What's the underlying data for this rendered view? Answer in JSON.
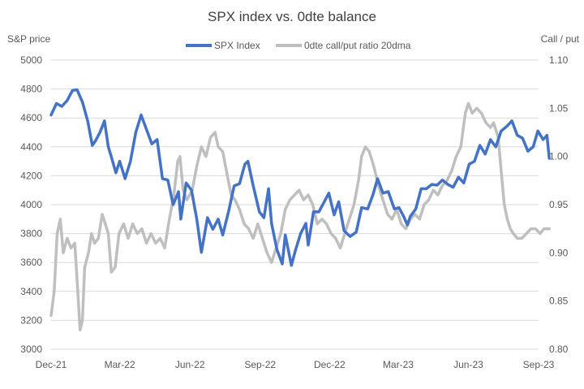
{
  "chart_data": {
    "type": "line",
    "title": "SPX index vs. 0dte balance",
    "y_left_label": "S&P price",
    "y_right_label": "Call / put",
    "y_left_lim": [
      3000,
      5000
    ],
    "y_left_ticks": [
      "3000",
      "3200",
      "3400",
      "3600",
      "3800",
      "4000",
      "4200",
      "4400",
      "4600",
      "4800",
      "5000"
    ],
    "y_right_lim": [
      0.8,
      1.1
    ],
    "y_right_ticks": [
      "0.80",
      "0.85",
      "0.90",
      "0.95",
      "1.00",
      "1.05",
      "1.10"
    ],
    "x_ticks": [
      "Dec-21",
      "Mar-22",
      "Jun-22",
      "Sep-22",
      "Dec-22",
      "Mar-23",
      "Jun-23",
      "Sep-23"
    ],
    "x_tick_dates": [
      "2021-12-01",
      "2022-03-01",
      "2022-06-01",
      "2022-09-01",
      "2022-12-01",
      "2023-03-01",
      "2023-06-01",
      "2023-09-01"
    ],
    "gridlines": "horizontal",
    "legend_position": "top",
    "series": [
      {
        "name": "SPX Index",
        "axis": "left",
        "color": "#4472c4",
        "points": [
          [
            "2021-12-01",
            4620
          ],
          [
            "2021-12-08",
            4700
          ],
          [
            "2021-12-15",
            4680
          ],
          [
            "2021-12-22",
            4720
          ],
          [
            "2021-12-29",
            4790
          ],
          [
            "2022-01-04",
            4795
          ],
          [
            "2022-01-11",
            4710
          ],
          [
            "2022-01-18",
            4580
          ],
          [
            "2022-01-24",
            4410
          ],
          [
            "2022-01-28",
            4440
          ],
          [
            "2022-02-03",
            4500
          ],
          [
            "2022-02-09",
            4580
          ],
          [
            "2022-02-14",
            4400
          ],
          [
            "2022-02-18",
            4330
          ],
          [
            "2022-02-24",
            4220
          ],
          [
            "2022-03-01",
            4300
          ],
          [
            "2022-03-08",
            4180
          ],
          [
            "2022-03-15",
            4300
          ],
          [
            "2022-03-22",
            4500
          ],
          [
            "2022-03-29",
            4620
          ],
          [
            "2022-04-05",
            4520
          ],
          [
            "2022-04-12",
            4420
          ],
          [
            "2022-04-19",
            4450
          ],
          [
            "2022-04-26",
            4180
          ],
          [
            "2022-05-03",
            4170
          ],
          [
            "2022-05-10",
            4000
          ],
          [
            "2022-05-17",
            4090
          ],
          [
            "2022-05-20",
            3900
          ],
          [
            "2022-05-27",
            4150
          ],
          [
            "2022-06-03",
            4100
          ],
          [
            "2022-06-10",
            3900
          ],
          [
            "2022-06-16",
            3670
          ],
          [
            "2022-06-24",
            3910
          ],
          [
            "2022-07-01",
            3830
          ],
          [
            "2022-07-08",
            3900
          ],
          [
            "2022-07-14",
            3790
          ],
          [
            "2022-07-22",
            3960
          ],
          [
            "2022-07-29",
            4130
          ],
          [
            "2022-08-05",
            4145
          ],
          [
            "2022-08-12",
            4280
          ],
          [
            "2022-08-16",
            4300
          ],
          [
            "2022-08-23",
            4130
          ],
          [
            "2022-08-31",
            3950
          ],
          [
            "2022-09-06",
            3910
          ],
          [
            "2022-09-12",
            4110
          ],
          [
            "2022-09-16",
            3870
          ],
          [
            "2022-09-23",
            3690
          ],
          [
            "2022-09-30",
            3590
          ],
          [
            "2022-10-04",
            3790
          ],
          [
            "2022-10-12",
            3580
          ],
          [
            "2022-10-17",
            3680
          ],
          [
            "2022-10-24",
            3800
          ],
          [
            "2022-10-31",
            3870
          ],
          [
            "2022-11-03",
            3720
          ],
          [
            "2022-11-10",
            3950
          ],
          [
            "2022-11-17",
            3950
          ],
          [
            "2022-11-25",
            4030
          ],
          [
            "2022-11-30",
            4080
          ],
          [
            "2022-12-07",
            3930
          ],
          [
            "2022-12-13",
            4020
          ],
          [
            "2022-12-20",
            3820
          ],
          [
            "2022-12-28",
            3780
          ],
          [
            "2023-01-05",
            3810
          ],
          [
            "2023-01-12",
            3980
          ],
          [
            "2023-01-20",
            3970
          ],
          [
            "2023-01-27",
            4070
          ],
          [
            "2023-02-02",
            4180
          ],
          [
            "2023-02-09",
            4080
          ],
          [
            "2023-02-16",
            4090
          ],
          [
            "2023-02-24",
            3970
          ],
          [
            "2023-03-02",
            3980
          ],
          [
            "2023-03-08",
            3920
          ],
          [
            "2023-03-13",
            3860
          ],
          [
            "2023-03-17",
            3920
          ],
          [
            "2023-03-24",
            3970
          ],
          [
            "2023-03-31",
            4110
          ],
          [
            "2023-04-07",
            4110
          ],
          [
            "2023-04-14",
            4140
          ],
          [
            "2023-04-21",
            4135
          ],
          [
            "2023-04-28",
            4170
          ],
          [
            "2023-05-05",
            4140
          ],
          [
            "2023-05-12",
            4120
          ],
          [
            "2023-05-19",
            4190
          ],
          [
            "2023-05-26",
            4150
          ],
          [
            "2023-06-02",
            4280
          ],
          [
            "2023-06-09",
            4300
          ],
          [
            "2023-06-16",
            4410
          ],
          [
            "2023-06-23",
            4350
          ],
          [
            "2023-06-30",
            4450
          ],
          [
            "2023-07-07",
            4400
          ],
          [
            "2023-07-14",
            4510
          ],
          [
            "2023-07-21",
            4540
          ],
          [
            "2023-07-28",
            4580
          ],
          [
            "2023-08-04",
            4480
          ],
          [
            "2023-08-11",
            4460
          ],
          [
            "2023-08-18",
            4370
          ],
          [
            "2023-08-25",
            4400
          ],
          [
            "2023-08-31",
            4510
          ],
          [
            "2023-09-07",
            4450
          ],
          [
            "2023-09-12",
            4480
          ],
          [
            "2023-09-15",
            4320
          ]
        ]
      },
      {
        "name": "0dte call/put ratio 20dma",
        "axis": "right",
        "color": "#bfbfbf",
        "points": [
          [
            "2021-12-01",
            0.835
          ],
          [
            "2021-12-05",
            0.86
          ],
          [
            "2021-12-09",
            0.92
          ],
          [
            "2021-12-13",
            0.935
          ],
          [
            "2021-12-17",
            0.9
          ],
          [
            "2021-12-22",
            0.915
          ],
          [
            "2021-12-27",
            0.905
          ],
          [
            "2022-01-01",
            0.91
          ],
          [
            "2022-01-05",
            0.86
          ],
          [
            "2022-01-08",
            0.82
          ],
          [
            "2022-01-11",
            0.83
          ],
          [
            "2022-01-14",
            0.885
          ],
          [
            "2022-01-19",
            0.9
          ],
          [
            "2022-01-23",
            0.92
          ],
          [
            "2022-01-27",
            0.91
          ],
          [
            "2022-02-01",
            0.915
          ],
          [
            "2022-02-06",
            0.94
          ],
          [
            "2022-02-10",
            0.93
          ],
          [
            "2022-02-14",
            0.92
          ],
          [
            "2022-02-18",
            0.88
          ],
          [
            "2022-02-23",
            0.885
          ],
          [
            "2022-02-28",
            0.92
          ],
          [
            "2022-03-06",
            0.93
          ],
          [
            "2022-03-12",
            0.915
          ],
          [
            "2022-03-18",
            0.93
          ],
          [
            "2022-03-24",
            0.92
          ],
          [
            "2022-03-30",
            0.925
          ],
          [
            "2022-04-05",
            0.91
          ],
          [
            "2022-04-11",
            0.92
          ],
          [
            "2022-04-17",
            0.91
          ],
          [
            "2022-04-23",
            0.915
          ],
          [
            "2022-04-29",
            0.905
          ],
          [
            "2022-05-05",
            0.935
          ],
          [
            "2022-05-11",
            0.96
          ],
          [
            "2022-05-16",
            0.995
          ],
          [
            "2022-05-19",
            1.0
          ],
          [
            "2022-05-23",
            0.965
          ],
          [
            "2022-05-28",
            0.955
          ],
          [
            "2022-06-04",
            0.965
          ],
          [
            "2022-06-10",
            0.99
          ],
          [
            "2022-06-16",
            1.01
          ],
          [
            "2022-06-22",
            1.0
          ],
          [
            "2022-06-28",
            1.02
          ],
          [
            "2022-07-04",
            1.025
          ],
          [
            "2022-07-08",
            1.01
          ],
          [
            "2022-07-14",
            1.005
          ],
          [
            "2022-07-20",
            0.98
          ],
          [
            "2022-07-25",
            0.96
          ],
          [
            "2022-07-30",
            0.955
          ],
          [
            "2022-08-05",
            0.945
          ],
          [
            "2022-08-11",
            0.93
          ],
          [
            "2022-08-17",
            0.925
          ],
          [
            "2022-08-23",
            0.915
          ],
          [
            "2022-08-29",
            0.93
          ],
          [
            "2022-09-04",
            0.915
          ],
          [
            "2022-09-10",
            0.9
          ],
          [
            "2022-09-16",
            0.89
          ],
          [
            "2022-09-22",
            0.905
          ],
          [
            "2022-09-28",
            0.92
          ],
          [
            "2022-10-04",
            0.945
          ],
          [
            "2022-10-10",
            0.955
          ],
          [
            "2022-10-16",
            0.96
          ],
          [
            "2022-10-22",
            0.965
          ],
          [
            "2022-10-28",
            0.955
          ],
          [
            "2022-11-03",
            0.96
          ],
          [
            "2022-11-09",
            0.95
          ],
          [
            "2022-11-15",
            0.93
          ],
          [
            "2022-11-21",
            0.935
          ],
          [
            "2022-11-27",
            0.93
          ],
          [
            "2022-12-03",
            0.92
          ],
          [
            "2022-12-09",
            0.915
          ],
          [
            "2022-12-15",
            0.905
          ],
          [
            "2022-12-21",
            0.92
          ],
          [
            "2022-12-27",
            0.935
          ],
          [
            "2023-01-02",
            0.95
          ],
          [
            "2023-01-08",
            0.975
          ],
          [
            "2023-01-12",
            1.0
          ],
          [
            "2023-01-17",
            1.01
          ],
          [
            "2023-01-22",
            1.005
          ],
          [
            "2023-01-28",
            0.99
          ],
          [
            "2023-02-03",
            0.97
          ],
          [
            "2023-02-09",
            0.955
          ],
          [
            "2023-02-15",
            0.94
          ],
          [
            "2023-02-21",
            0.935
          ],
          [
            "2023-02-27",
            0.945
          ],
          [
            "2023-03-05",
            0.93
          ],
          [
            "2023-03-11",
            0.925
          ],
          [
            "2023-03-17",
            0.935
          ],
          [
            "2023-03-23",
            0.94
          ],
          [
            "2023-03-29",
            0.935
          ],
          [
            "2023-04-04",
            0.95
          ],
          [
            "2023-04-10",
            0.955
          ],
          [
            "2023-04-16",
            0.965
          ],
          [
            "2023-04-22",
            0.96
          ],
          [
            "2023-04-28",
            0.97
          ],
          [
            "2023-05-04",
            0.975
          ],
          [
            "2023-05-10",
            0.985
          ],
          [
            "2023-05-16",
            1.0
          ],
          [
            "2023-05-22",
            1.01
          ],
          [
            "2023-05-28",
            1.045
          ],
          [
            "2023-06-01",
            1.055
          ],
          [
            "2023-06-06",
            1.045
          ],
          [
            "2023-06-12",
            1.05
          ],
          [
            "2023-06-18",
            1.045
          ],
          [
            "2023-06-24",
            1.035
          ],
          [
            "2023-06-30",
            1.03
          ],
          [
            "2023-07-04",
            1.035
          ],
          [
            "2023-07-10",
            1.02
          ],
          [
            "2023-07-14",
            0.985
          ],
          [
            "2023-07-18",
            0.95
          ],
          [
            "2023-07-22",
            0.935
          ],
          [
            "2023-07-26",
            0.925
          ],
          [
            "2023-07-30",
            0.92
          ],
          [
            "2023-08-04",
            0.915
          ],
          [
            "2023-08-10",
            0.915
          ],
          [
            "2023-08-16",
            0.92
          ],
          [
            "2023-08-22",
            0.925
          ],
          [
            "2023-08-28",
            0.925
          ],
          [
            "2023-09-03",
            0.92
          ],
          [
            "2023-09-08",
            0.925
          ],
          [
            "2023-09-15",
            0.925
          ]
        ]
      }
    ]
  }
}
